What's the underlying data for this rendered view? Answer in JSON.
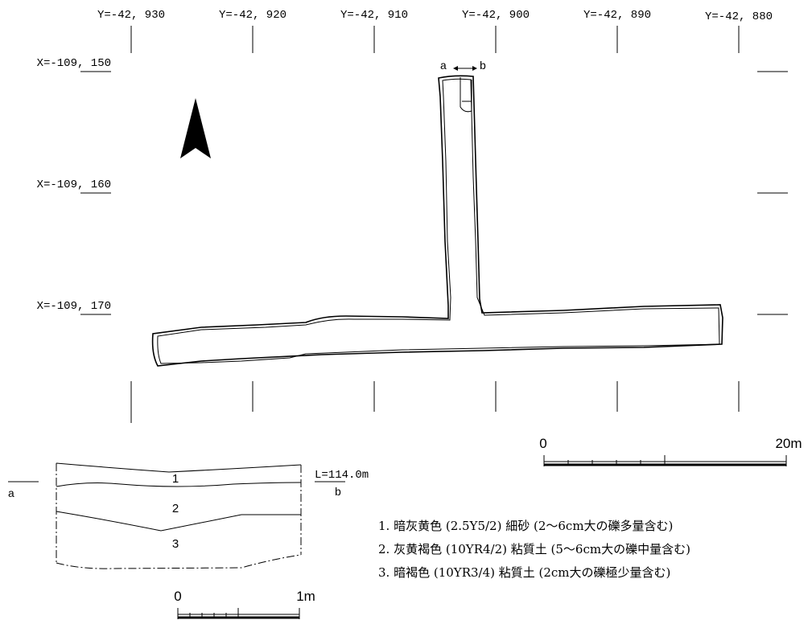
{
  "grid": {
    "y_labels": [
      "Y=-42, 930",
      "Y=-42, 920",
      "Y=-42, 910",
      "Y=-42, 900",
      "Y=-42, 890",
      "Y=-42, 880"
    ],
    "x_labels": [
      "X=-109, 150",
      "X=-109, 160",
      "X=-109, 170"
    ]
  },
  "north_arrow": {
    "icon": "north-arrow-icon"
  },
  "plan": {
    "section_a": "a",
    "section_b": "b"
  },
  "scale_plan": {
    "start": "0",
    "end": "20m"
  },
  "section": {
    "left_label": "a",
    "elevation": "L=114.0m",
    "right_label": "b",
    "layer_numbers": [
      "1",
      "2",
      "3"
    ]
  },
  "scale_section": {
    "start": "0",
    "end": "1m"
  },
  "legend": [
    "1. 暗灰黄色 (2.5Y5/2) 細砂 (2～6cm大の礫多量含む)",
    "2. 灰黄褐色 (10YR4/2) 粘質土 (5～6cm大の礫中量含む)",
    "3. 暗褐色 (10YR3/4) 粘質土 (2cm大の礫極少量含む)"
  ]
}
